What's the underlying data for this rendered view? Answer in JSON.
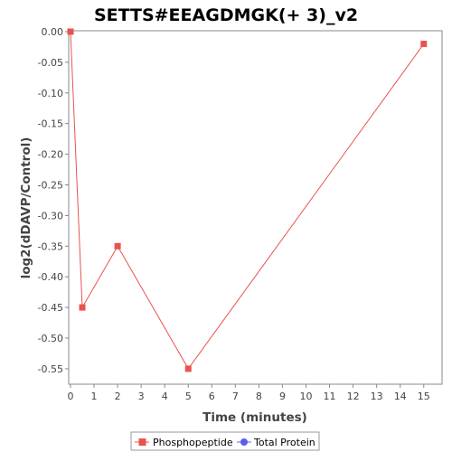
{
  "chart_data": {
    "type": "line",
    "title": "SETTS#EEAGDMGK(+ 3)_v2",
    "xlabel": "Time (minutes)",
    "ylabel": "log2(dDAVP/Control)",
    "xlim": [
      0,
      16
    ],
    "ylim": [
      -0.58,
      0.0
    ],
    "xticks": [
      0,
      1,
      2,
      3,
      4,
      5,
      6,
      7,
      8,
      9,
      10,
      11,
      12,
      13,
      14,
      15
    ],
    "yticks": [
      0.0,
      -0.05,
      -0.1,
      -0.15,
      -0.2,
      -0.25,
      -0.3,
      -0.35,
      -0.4,
      -0.45,
      -0.5,
      -0.55
    ],
    "x_tick_labels": [
      "0",
      "1",
      "2",
      "3",
      "4",
      "5",
      "6",
      "7",
      "8",
      "9",
      "10",
      "11",
      "12",
      "13",
      "14",
      "15"
    ],
    "y_tick_labels": [
      "0.00",
      "-0.05",
      "-0.10",
      "-0.15",
      "-0.20",
      "-0.25",
      "-0.30",
      "-0.35",
      "-0.40",
      "-0.45",
      "-0.50",
      "-0.55"
    ],
    "grid": false,
    "legend_position": "bottom",
    "series": [
      {
        "name": "Phosphopeptide",
        "color": "#e8534f",
        "marker": "square",
        "x": [
          0,
          0.5,
          2,
          5,
          15
        ],
        "y": [
          0.0,
          -0.45,
          -0.35,
          -0.55,
          -0.02
        ]
      },
      {
        "name": "Total Protein",
        "color": "#5b5bf0",
        "marker": "circle",
        "x": [],
        "y": []
      }
    ]
  }
}
